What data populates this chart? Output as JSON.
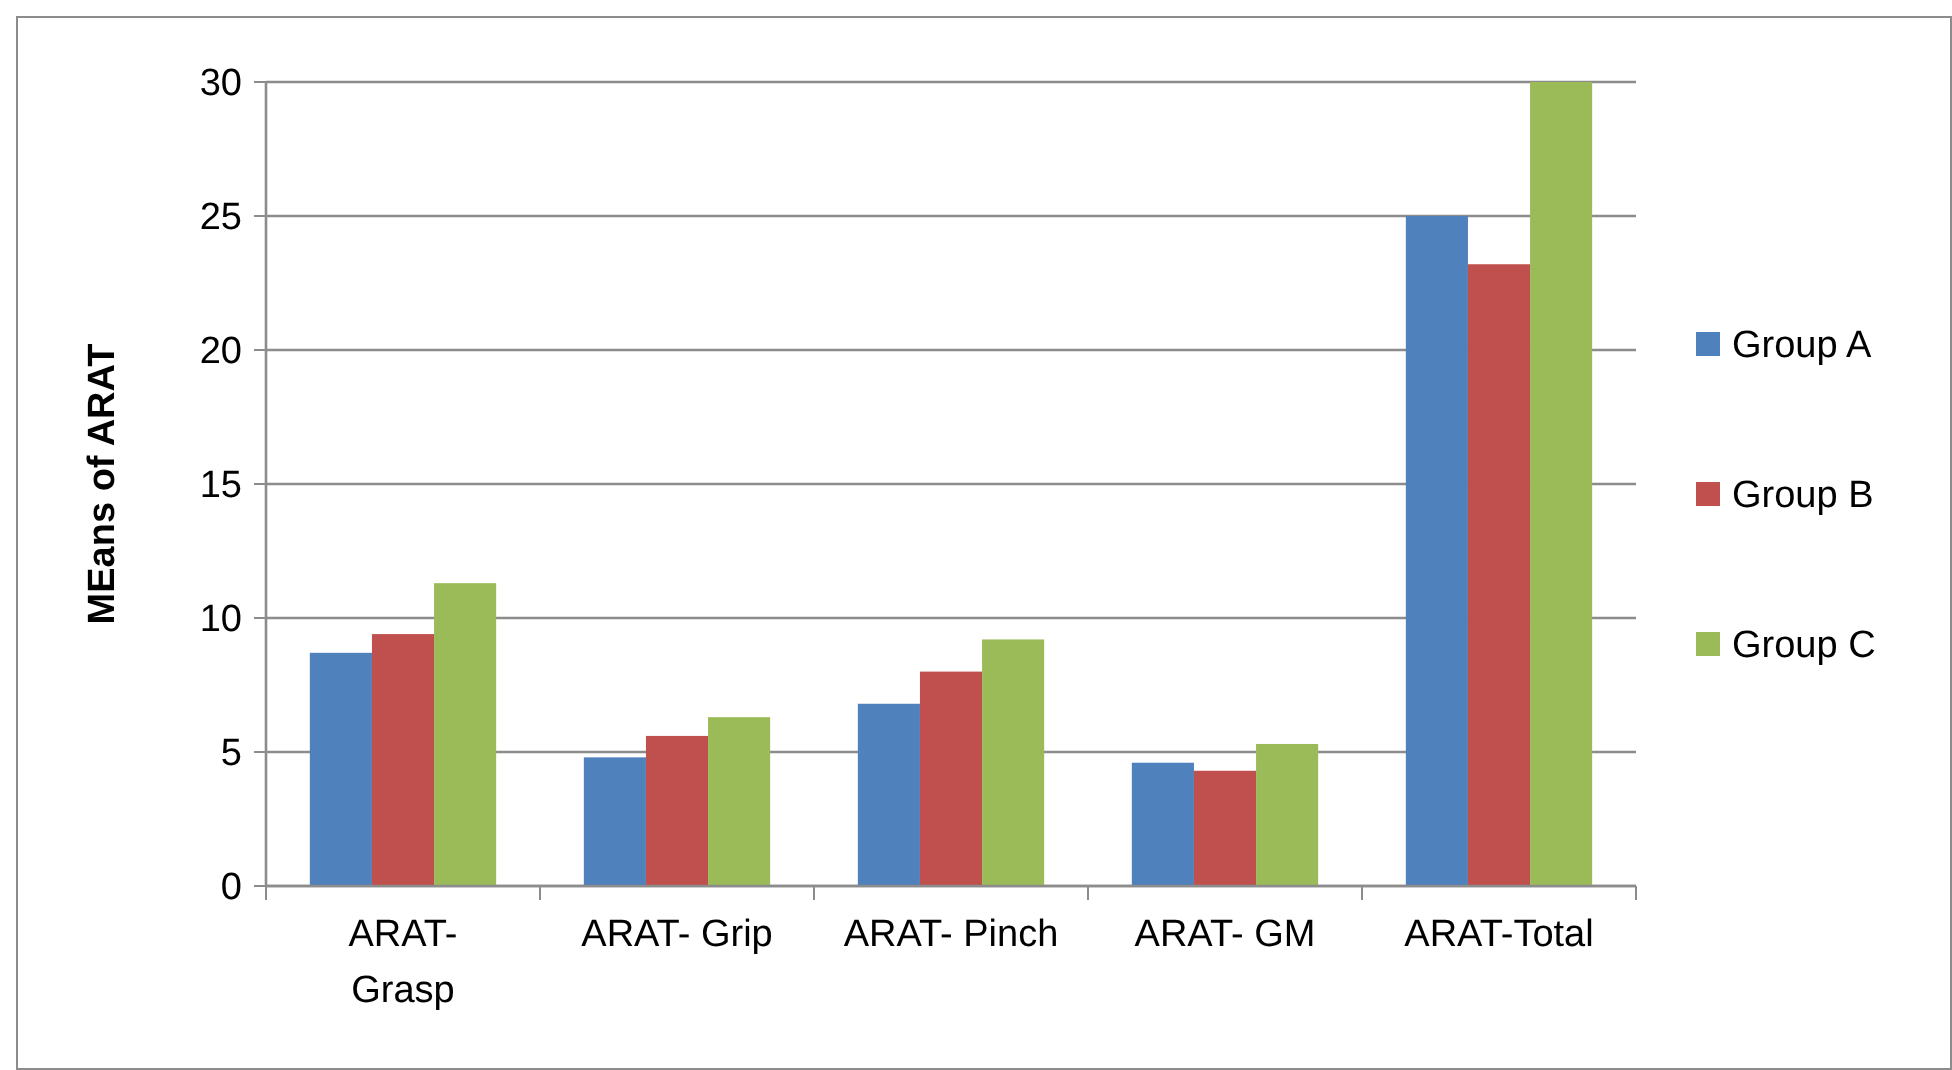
{
  "chart_data": {
    "type": "bar",
    "ylabel": "MEans of ARAT",
    "categories": [
      "ARAT-\nGrasp",
      "ARAT- Grip",
      "ARAT- Pinch",
      "ARAT- GM",
      "ARAT-Total"
    ],
    "series": [
      {
        "name": "Group A",
        "color": "#4f81bd",
        "values": [
          8.7,
          4.8,
          6.8,
          4.6,
          25.0
        ]
      },
      {
        "name": "Group B",
        "color": "#c0504d",
        "values": [
          9.4,
          5.6,
          8.0,
          4.3,
          23.2
        ]
      },
      {
        "name": "Group C",
        "color": "#9bbb59",
        "values": [
          11.3,
          6.3,
          9.2,
          5.3,
          30.0
        ]
      }
    ],
    "ylim": [
      0,
      30
    ],
    "yticks": [
      0,
      5,
      10,
      15,
      20,
      25,
      30
    ],
    "grid": "y",
    "legend": "right"
  }
}
